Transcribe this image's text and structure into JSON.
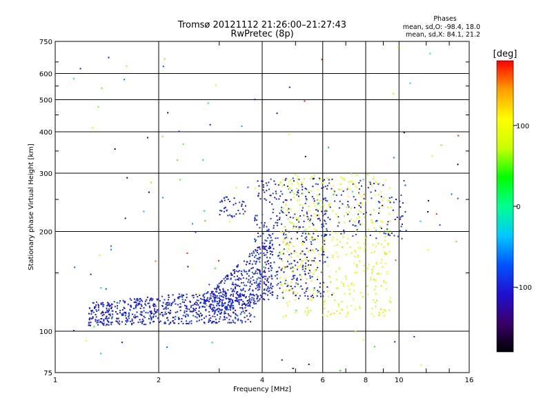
{
  "chart_data": {
    "type": "scatter",
    "title": "Tromsø 20121112 21:26:00–21:27:43",
    "subtitle": "RwPretec (8p)",
    "info": {
      "heading": "Phases",
      "line1": "mean, sd,O: -98.4, 18.0",
      "line2": "mean, sd,X:  84.1, 21.2"
    },
    "xlabel": "Frequency [MHz]",
    "ylabel": "Stationary phase Virtual Height [km]",
    "x_scale": "log",
    "y_scale": "log",
    "xlim": [
      1,
      16
    ],
    "ylim": [
      75,
      750
    ],
    "x_ticks": [
      1,
      2,
      4,
      6,
      8,
      10,
      16
    ],
    "x_tick_labels": [
      "1",
      "2",
      "4",
      "6",
      "8",
      "10",
      "16"
    ],
    "x_minor_ticks": [
      3,
      5,
      7,
      9,
      12,
      14
    ],
    "y_ticks": [
      75,
      100,
      200,
      300,
      400,
      500,
      600,
      750
    ],
    "y_tick_labels": [
      "75",
      "100",
      "200",
      "300",
      "400",
      "500",
      "600",
      "750"
    ],
    "grid": true,
    "colorbar": {
      "title": "[deg]",
      "range": [
        -180,
        180
      ],
      "tick_values": [
        100,
        0,
        -100
      ],
      "tick_labels": [
        "100",
        "0",
        "-100"
      ],
      "colors": [
        "#000000",
        "#3a006a",
        "#2010d0",
        "#0055ff",
        "#00c8ff",
        "#00ff90",
        "#00ff00",
        "#c8ff00",
        "#ffff00",
        "#ffa000",
        "#ff0000"
      ]
    },
    "point_colors": {
      "O": "#2a12d8",
      "X": "#e0ee10",
      "noise": "mixed"
    },
    "clusters": [
      {
        "name": "O-mode lower",
        "phase": -100,
        "f_range": [
          1.25,
          3.8
        ],
        "h_range": [
          104,
          135
        ],
        "count": 700
      },
      {
        "name": "O-mode rise",
        "phase": -100,
        "f_range": [
          2.8,
          4.3
        ],
        "h_range": [
          120,
          195
        ],
        "count": 330
      },
      {
        "name": "O-mode upper",
        "phase": -100,
        "f_range": [
          3.8,
          6.2
        ],
        "h_range": [
          125,
          290
        ],
        "count": 420
      },
      {
        "name": "O-mode patch",
        "phase": -100,
        "f_range": [
          3.0,
          3.6
        ],
        "h_range": [
          220,
          255
        ],
        "count": 40
      },
      {
        "name": "O-mode high",
        "phase": -100,
        "f_range": [
          6.0,
          10.5
        ],
        "h_range": [
          190,
          290
        ],
        "count": 120
      },
      {
        "name": "X-mode",
        "phase": 90,
        "f_range": [
          4.5,
          9.5
        ],
        "h_range": [
          110,
          300
        ],
        "count": 460
      },
      {
        "name": "noise",
        "phase": "mixed",
        "f_range": [
          1.05,
          15.5
        ],
        "h_range": [
          76,
          740
        ],
        "count": 120
      }
    ]
  }
}
